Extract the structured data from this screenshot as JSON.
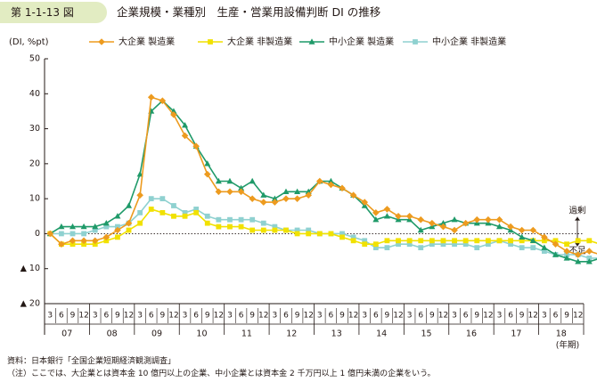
{
  "header": {
    "badge": "第 1-1-13 図",
    "title": "企業規模・業種別　生産・営業用設備判断 DI の推移"
  },
  "chart_data": {
    "type": "line",
    "yunit": "(DI, %pt)",
    "ylim": [
      -20,
      50
    ],
    "yticks": [
      {
        "v": 50,
        "label": "50"
      },
      {
        "v": 40,
        "label": "40"
      },
      {
        "v": 30,
        "label": "30"
      },
      {
        "v": 20,
        "label": "20"
      },
      {
        "v": 10,
        "label": "10"
      },
      {
        "v": 0,
        "label": "0"
      },
      {
        "v": -10,
        "label": "▲ 10"
      },
      {
        "v": -20,
        "label": "▲ 20"
      }
    ],
    "month_labels": [
      "3",
      "6",
      "9",
      "12"
    ],
    "years": [
      "07",
      "08",
      "09",
      "10",
      "11",
      "12",
      "13",
      "14",
      "15",
      "16",
      "17",
      "18"
    ],
    "xunit": "(年期)",
    "right_labels": {
      "top": "過剰",
      "bottom": "不足"
    },
    "grid": false,
    "legend_position": "top",
    "series": [
      {
        "name": "大企業 製造業",
        "color": "#ed9b1f",
        "marker": "diamond",
        "values": [
          0,
          -3,
          -2,
          -2,
          -2,
          -1,
          1,
          3,
          11,
          39,
          38,
          34,
          28,
          25,
          17,
          12,
          12,
          12,
          10,
          9,
          9,
          10,
          10,
          11,
          15,
          14,
          13,
          11,
          9,
          6,
          7,
          5,
          5,
          4,
          3,
          2,
          1,
          3,
          4,
          4,
          4,
          2,
          1,
          1,
          -1,
          -3,
          -5,
          -6,
          -5,
          -6
        ]
      },
      {
        "name": "大企業 非製造業",
        "color": "#f1e100",
        "marker": "square",
        "values": [
          0,
          -3,
          -3,
          -3,
          -3,
          -2,
          -1,
          1,
          3,
          7,
          6,
          5,
          5,
          6,
          3,
          2,
          2,
          2,
          1,
          1,
          1,
          1,
          0,
          0,
          0,
          0,
          -1,
          -2,
          -3,
          -3,
          -2,
          -2,
          -2,
          -2,
          -2,
          -2,
          -2,
          -2,
          -2,
          -2,
          -2,
          -2,
          -2,
          -2,
          -2,
          -2,
          -3,
          -2,
          -2,
          -3
        ]
      },
      {
        "name": "中小企業 製造業",
        "color": "#1f9a69",
        "marker": "triangle",
        "values": [
          0,
          2,
          2,
          2,
          2,
          3,
          5,
          8,
          17,
          35,
          38,
          35,
          31,
          25,
          20,
          15,
          15,
          13,
          15,
          11,
          10,
          12,
          12,
          12,
          15,
          15,
          13,
          11,
          8,
          4,
          5,
          4,
          4,
          1,
          2,
          3,
          4,
          3,
          3,
          3,
          2,
          1,
          -1,
          -2,
          -4,
          -6,
          -7,
          -8,
          -8,
          -7
        ]
      },
      {
        "name": "中小企業 非製造業",
        "color": "#8fd1d0",
        "marker": "square",
        "values": [
          0,
          0,
          0,
          0,
          1,
          2,
          2,
          3,
          6,
          10,
          10,
          8,
          6,
          7,
          5,
          4,
          4,
          4,
          4,
          3,
          2,
          1,
          1,
          1,
          0,
          0,
          0,
          -1,
          -2,
          -4,
          -4,
          -3,
          -3,
          -4,
          -3,
          -3,
          -3,
          -3,
          -4,
          -3,
          -2,
          -3,
          -4,
          -4,
          -5,
          -6,
          -6,
          -6,
          -7,
          -7
        ]
      }
    ]
  },
  "notes": {
    "source": "資料：日本銀行「全国企業短期経済観測調査」",
    "note": "（注）ここでは、大企業とは資本金 10 億円以上の企業、中小企業とは資本金 2 千万円以上 1 億円未満の企業をいう。"
  }
}
